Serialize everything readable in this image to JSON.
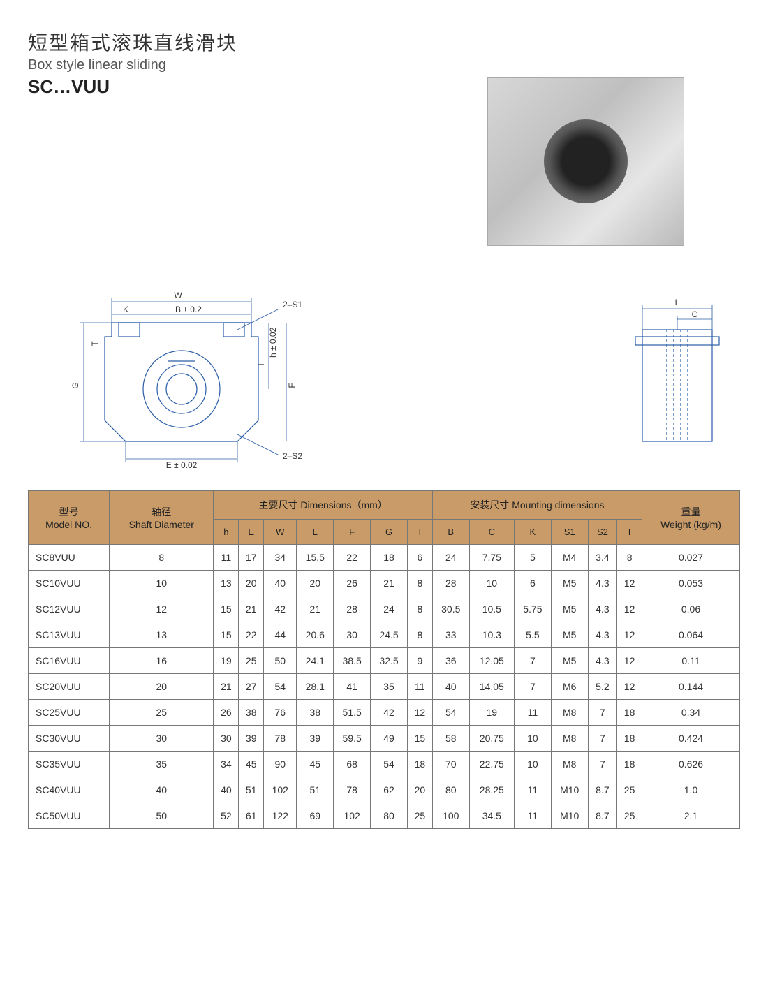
{
  "title": {
    "cn": "短型箱式滚珠直线滑块",
    "en": "Box style linear sliding",
    "series": "SC…VUU"
  },
  "diagram_labels": {
    "W": "W",
    "K": "K",
    "B": "B ± 0.2",
    "G": "G",
    "T": "T",
    "E": "E ± 0.02",
    "h": "h ± 0.02",
    "F": "F",
    "I": "I",
    "S1": "2–S1",
    "S2": "2–S2",
    "L": "L",
    "C": "C"
  },
  "table": {
    "headers": {
      "model_cn": "型号",
      "model_en": "Model NO.",
      "shaft_cn": "轴径",
      "shaft_en": "Shaft Diameter",
      "dims_cn": "主要尺寸 Dimensions（mm）",
      "mount_cn": "安装尺寸 Mounting dimensions",
      "weight_cn": "重量",
      "weight_en": "Weight (kg/m)",
      "cols": [
        "h",
        "E",
        "W",
        "L",
        "F",
        "G",
        "T",
        "B",
        "C",
        "K",
        "S1",
        "S2",
        "I"
      ]
    },
    "rows": [
      {
        "model": "SC8VUU",
        "d": "8",
        "h": "11",
        "E": "17",
        "W": "34",
        "L": "15.5",
        "F": "22",
        "G": "18",
        "T": "6",
        "B": "24",
        "C": "7.75",
        "K": "5",
        "S1": "M4",
        "S2": "3.4",
        "I": "8",
        "wt": "0.027"
      },
      {
        "model": "SC10VUU",
        "d": "10",
        "h": "13",
        "E": "20",
        "W": "40",
        "L": "20",
        "F": "26",
        "G": "21",
        "T": "8",
        "B": "28",
        "C": "10",
        "K": "6",
        "S1": "M5",
        "S2": "4.3",
        "I": "12",
        "wt": "0.053"
      },
      {
        "model": "SC12VUU",
        "d": "12",
        "h": "15",
        "E": "21",
        "W": "42",
        "L": "21",
        "F": "28",
        "G": "24",
        "T": "8",
        "B": "30.5",
        "C": "10.5",
        "K": "5.75",
        "S1": "M5",
        "S2": "4.3",
        "I": "12",
        "wt": "0.06"
      },
      {
        "model": "SC13VUU",
        "d": "13",
        "h": "15",
        "E": "22",
        "W": "44",
        "L": "20.6",
        "F": "30",
        "G": "24.5",
        "T": "8",
        "B": "33",
        "C": "10.3",
        "K": "5.5",
        "S1": "M5",
        "S2": "4.3",
        "I": "12",
        "wt": "0.064"
      },
      {
        "model": "SC16VUU",
        "d": "16",
        "h": "19",
        "E": "25",
        "W": "50",
        "L": "24.1",
        "F": "38.5",
        "G": "32.5",
        "T": "9",
        "B": "36",
        "C": "12.05",
        "K": "7",
        "S1": "M5",
        "S2": "4.3",
        "I": "12",
        "wt": "0.11"
      },
      {
        "model": "SC20VUU",
        "d": "20",
        "h": "21",
        "E": "27",
        "W": "54",
        "L": "28.1",
        "F": "41",
        "G": "35",
        "T": "11",
        "B": "40",
        "C": "14.05",
        "K": "7",
        "S1": "M6",
        "S2": "5.2",
        "I": "12",
        "wt": "0.144"
      },
      {
        "model": "SC25VUU",
        "d": "25",
        "h": "26",
        "E": "38",
        "W": "76",
        "L": "38",
        "F": "51.5",
        "G": "42",
        "T": "12",
        "B": "54",
        "C": "19",
        "K": "11",
        "S1": "M8",
        "S2": "7",
        "I": "18",
        "wt": "0.34"
      },
      {
        "model": "SC30VUU",
        "d": "30",
        "h": "30",
        "E": "39",
        "W": "78",
        "L": "39",
        "F": "59.5",
        "G": "49",
        "T": "15",
        "B": "58",
        "C": "20.75",
        "K": "10",
        "S1": "M8",
        "S2": "7",
        "I": "18",
        "wt": "0.424"
      },
      {
        "model": "SC35VUU",
        "d": "35",
        "h": "34",
        "E": "45",
        "W": "90",
        "L": "45",
        "F": "68",
        "G": "54",
        "T": "18",
        "B": "70",
        "C": "22.75",
        "K": "10",
        "S1": "M8",
        "S2": "7",
        "I": "18",
        "wt": "0.626"
      },
      {
        "model": "SC40VUU",
        "d": "40",
        "h": "40",
        "E": "51",
        "W": "102",
        "L": "51",
        "F": "78",
        "G": "62",
        "T": "20",
        "B": "80",
        "C": "28.25",
        "K": "11",
        "S1": "M10",
        "S2": "8.7",
        "I": "25",
        "wt": "1.0"
      },
      {
        "model": "SC50VUU",
        "d": "50",
        "h": "52",
        "E": "61",
        "W": "122",
        "L": "69",
        "F": "102",
        "G": "80",
        "T": "25",
        "B": "100",
        "C": "34.5",
        "K": "11",
        "S1": "M10",
        "S2": "8.7",
        "I": "25",
        "wt": "2.1"
      }
    ]
  },
  "colors": {
    "header_bg": "#c89b68",
    "border": "#777777",
    "diagram_stroke": "#2a5da8"
  }
}
